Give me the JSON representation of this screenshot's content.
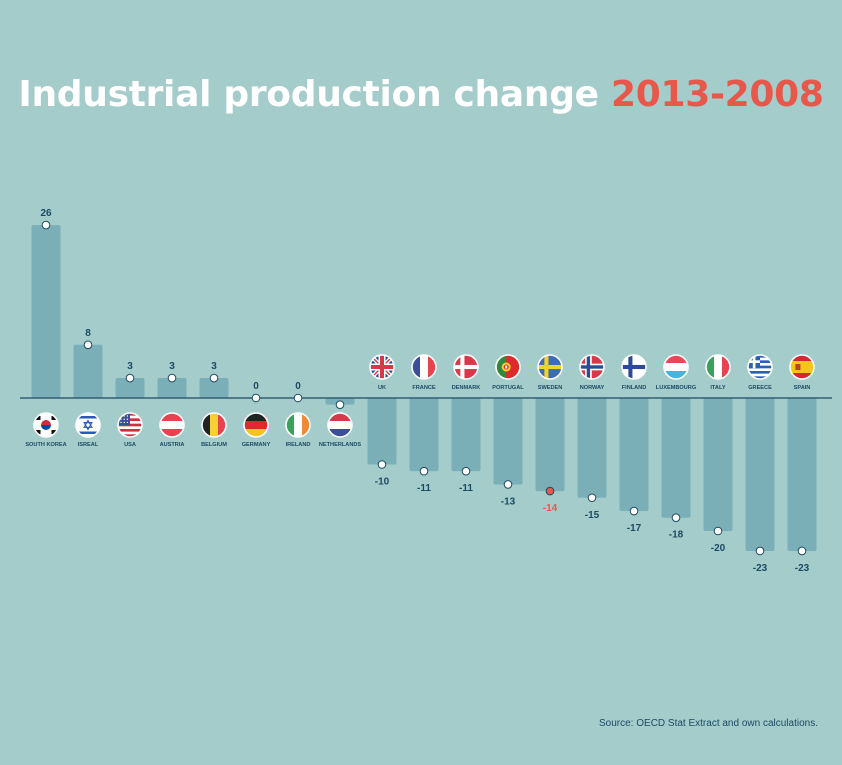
{
  "title": {
    "main": "Industrial production change ",
    "accent": "2013-2008"
  },
  "source": "Source: OECD Stat Extract and own calculations.",
  "colors": {
    "background": "#a3cccb",
    "bar": "#7aafb7",
    "text": "#1d4a63",
    "accent": "#e8584a",
    "marker": "#ffffff"
  },
  "chart_data": {
    "type": "bar",
    "categories": [
      "SOUTH KOREA",
      "ISREAL",
      "USA",
      "AUSTRIA",
      "BELGIUM",
      "GERMANY",
      "IRELAND",
      "NETHERLANDS",
      "UK",
      "FRANCE",
      "DENMARK",
      "PORTUGAL",
      "SWEDEN",
      "NORWAY",
      "FINLAND",
      "LUXEMBOURG",
      "ITALY",
      "GREECE",
      "SPAIN"
    ],
    "values": [
      26,
      8,
      3,
      3,
      3,
      0,
      0,
      -1,
      -10,
      -11,
      -11,
      -13,
      -14,
      -15,
      -17,
      -18,
      -20,
      -23,
      -23
    ],
    "highlight": "SWEDEN",
    "flags": [
      "south-korea-flag-icon",
      "israel-flag-icon",
      "usa-flag-icon",
      "austria-flag-icon",
      "belgium-flag-icon",
      "germany-flag-icon",
      "ireland-flag-icon",
      "netherlands-flag-icon",
      "uk-flag-icon",
      "france-flag-icon",
      "denmark-flag-icon",
      "portugal-flag-icon",
      "sweden-flag-icon",
      "norway-flag-icon",
      "finland-flag-icon",
      "luxembourg-flag-icon",
      "italy-flag-icon",
      "greece-flag-icon",
      "spain-flag-icon"
    ],
    "title": "Industrial production change 2013-2008",
    "xlabel": "",
    "ylabel": "",
    "grid": false,
    "legend": "none"
  }
}
